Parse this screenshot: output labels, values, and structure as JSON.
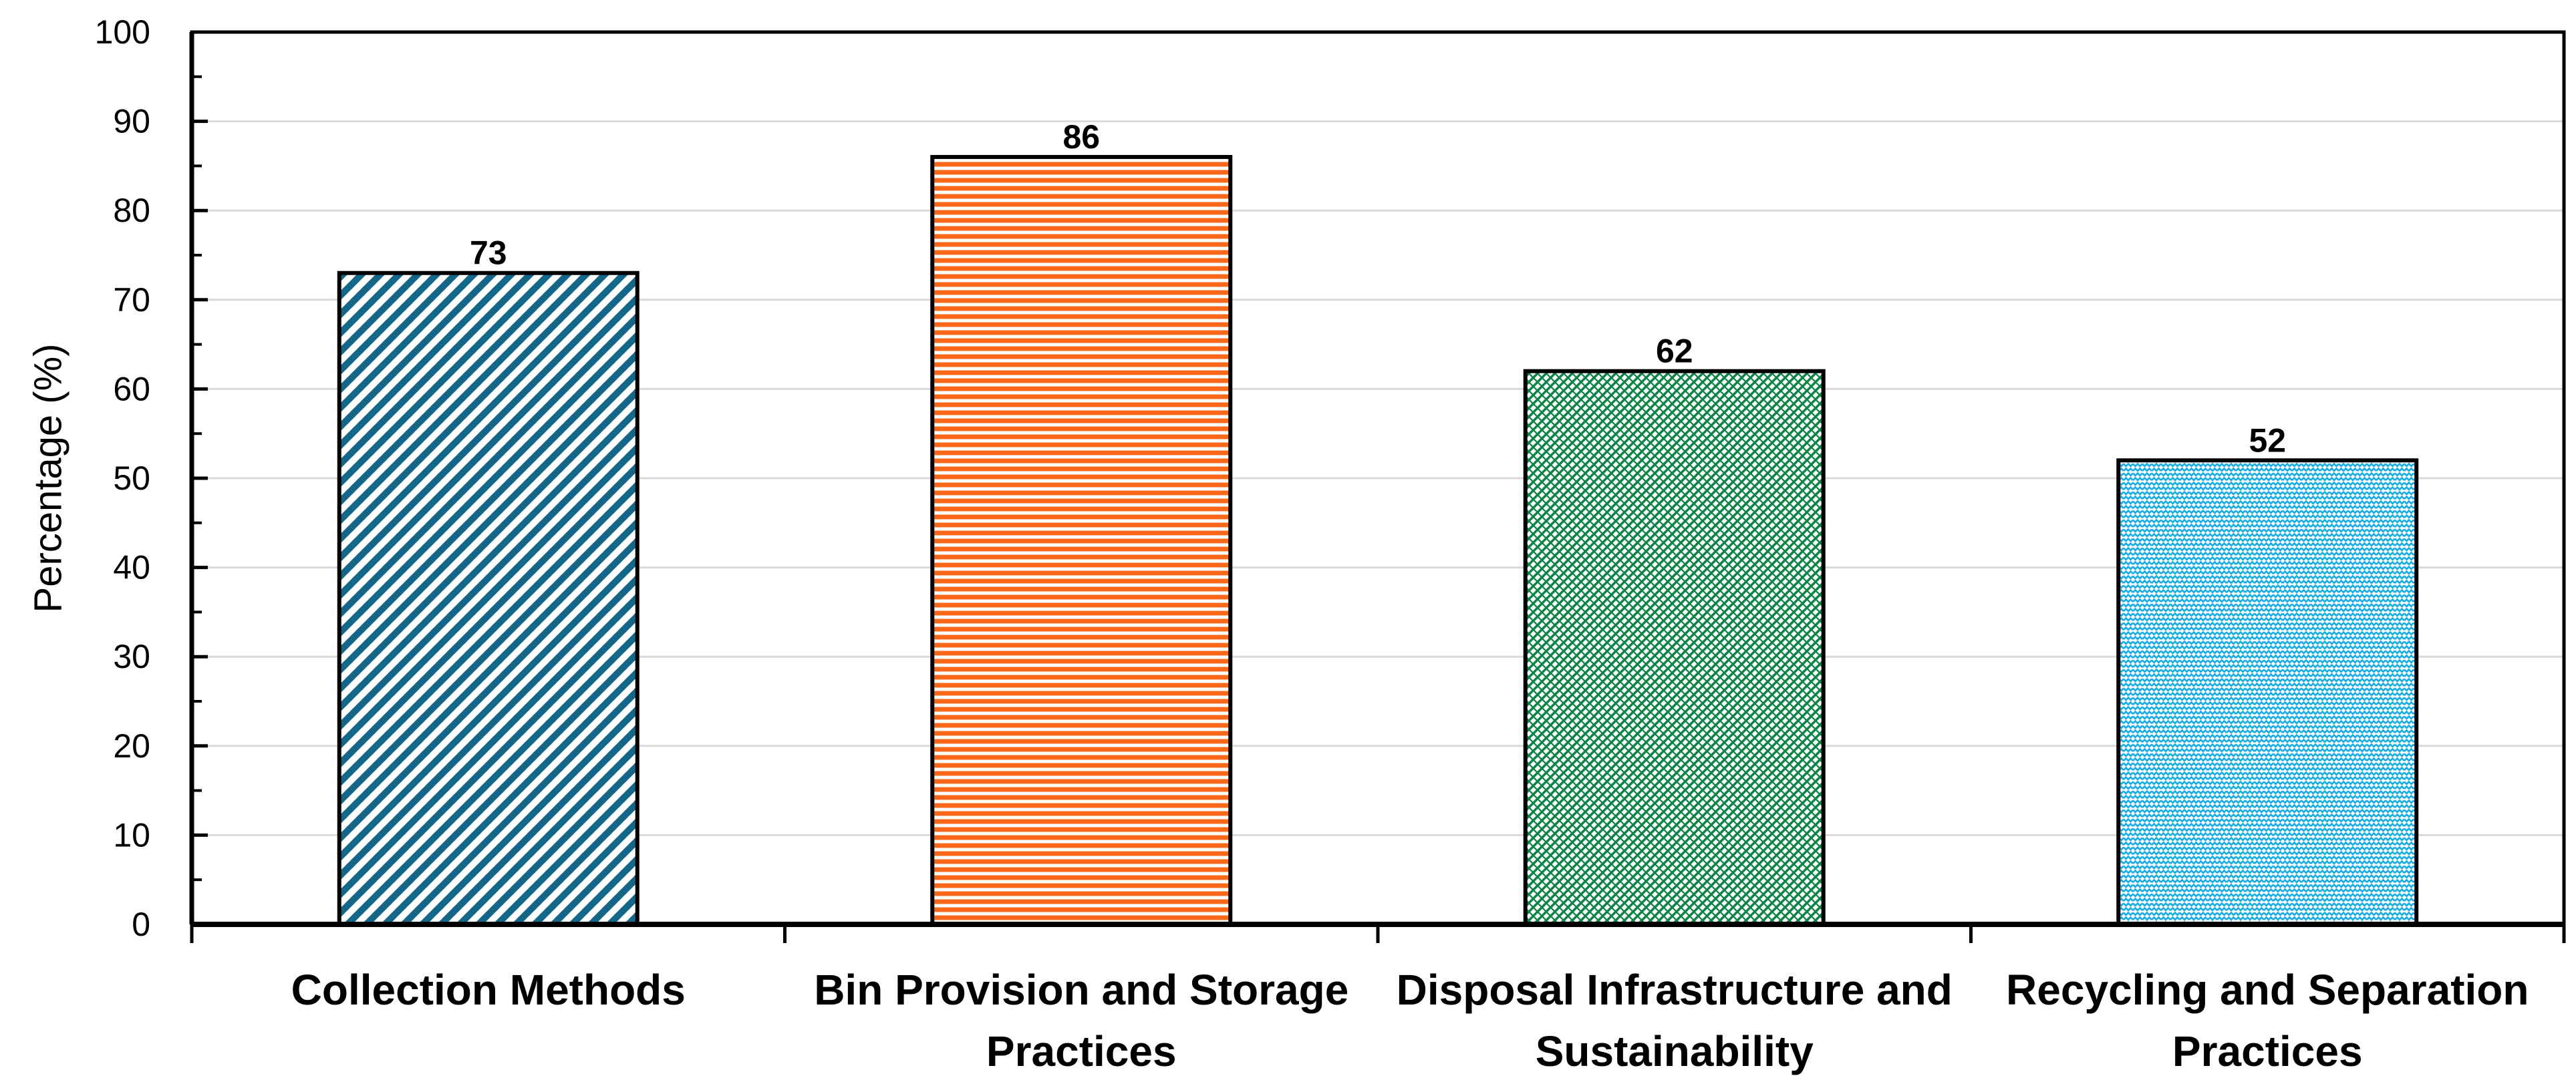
{
  "page": {
    "background": "#FFFFFF"
  },
  "chart_data": {
    "type": "bar",
    "title": "",
    "xlabel": "",
    "ylabel": "Percentage (%)",
    "ylim": [
      0,
      100
    ],
    "yticks": [
      0,
      10,
      20,
      30,
      40,
      50,
      60,
      70,
      80,
      90,
      100
    ],
    "minor_ytick_step": 5,
    "grid": "horizontal-major",
    "gridline_color": "#D9D9D9",
    "axis_color": "#000000",
    "text_color": "#000000",
    "legend_position": "none",
    "categories": [
      "Collection Methods",
      "Bin Provision and Storage Practices",
      "Disposal Infrastructure and Sustainability",
      "Recycling and Separation Practices"
    ],
    "category_label_lines": [
      [
        "Collection Methods"
      ],
      [
        "Bin Provision and Storage",
        "Practices"
      ],
      [
        "Disposal Infrastructure and",
        "Sustainability"
      ],
      [
        "Recycling and Separation",
        "Practices"
      ]
    ],
    "values": [
      73,
      86,
      62,
      52
    ],
    "bar_styles": [
      {
        "pattern": "diagonal-stripes-up",
        "color": "#15678A"
      },
      {
        "pattern": "horizontal-stripes",
        "color": "#F9681A"
      },
      {
        "pattern": "diagonal-lattice",
        "color": "#0D8446"
      },
      {
        "pattern": "zigzag-weave",
        "color": "#1BACE3"
      }
    ]
  }
}
